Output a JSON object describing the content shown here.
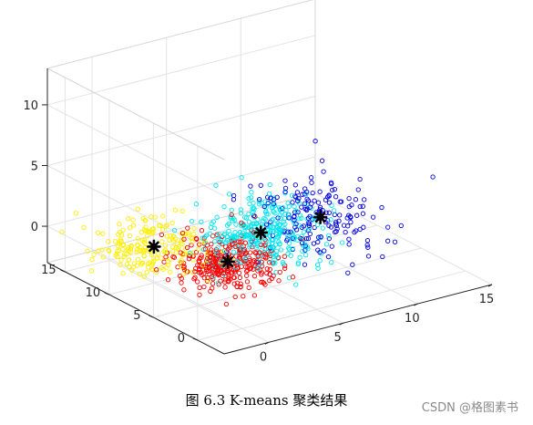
{
  "chart_data": {
    "type": "scatter",
    "subtype": "3d-scatter-kmeans",
    "title": "",
    "xlabel": "",
    "ylabel": "",
    "zlabel": "",
    "xlim": [
      -3,
      15
    ],
    "ylim": [
      -3,
      17
    ],
    "zlim": [
      -3,
      13
    ],
    "x_ticks": [
      0,
      5,
      10,
      15
    ],
    "y_ticks": [
      0,
      5,
      10,
      15
    ],
    "z_ticks": [
      0,
      5,
      10
    ],
    "grid": true,
    "marker": "open-circle",
    "centroid_marker": "asterisk",
    "series": [
      {
        "color": "#ffee00",
        "centroid": [
          0,
          10,
          0
        ],
        "spread": [
          1.6,
          2.0,
          1.0
        ],
        "count": 200
      },
      {
        "color": "#ff0000",
        "centroid": [
          2,
          5,
          0
        ],
        "spread": [
          1.4,
          1.6,
          1.0
        ],
        "count": 330
      },
      {
        "color": "#00e5ee",
        "centroid": [
          6,
          8,
          0
        ],
        "spread": [
          1.8,
          1.8,
          1.2
        ],
        "count": 360
      },
      {
        "color": "#0000dd",
        "centroid": [
          10,
          8,
          0
        ],
        "spread": [
          1.8,
          2.2,
          1.3
        ],
        "count": 180
      }
    ],
    "centroid_color": "#000000"
  },
  "caption": "图 6.3 K-means 聚类结果",
  "watermark": "CSDN @格图素书"
}
